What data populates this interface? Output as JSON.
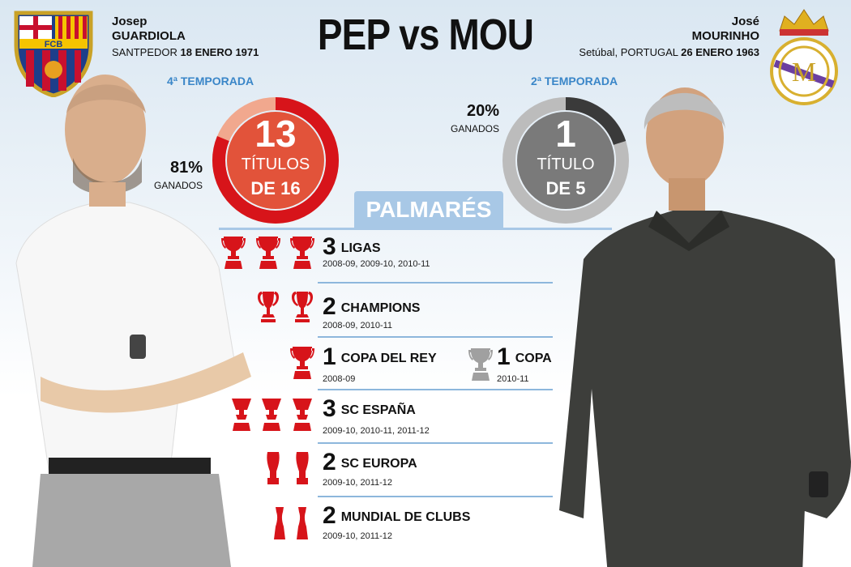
{
  "title": "PEP vs MOU",
  "pep": {
    "first_name": "Josep",
    "last_name": "GUARDIOLA",
    "birthplace": "SANTPEDOR",
    "birthdate": "18 ENERO 1971",
    "season": "4ª TEMPORADA",
    "win_pct": "81%",
    "win_label": "GANADOS",
    "titles_won": "13",
    "titles_label": "TÍTULOS",
    "titles_of": "DE 16",
    "fraction": 0.8125,
    "crest": "FCB"
  },
  "mou": {
    "first_name": "José",
    "last_name": "MOURINHO",
    "birthplace": "Setúbal, PORTUGAL",
    "birthdate": "26 ENERO 1963",
    "season": "2ª TEMPORADA",
    "win_pct": "20%",
    "win_label": "GANADOS",
    "titles_won": "1",
    "titles_label": "TÍTULO",
    "titles_of": "DE 5",
    "fraction": 0.2
  },
  "palmares": {
    "heading": "PALMARÉS",
    "pep_rows": [
      {
        "count": "3",
        "name": "LIGAS",
        "years": "2008-09, 2009-10, 2010-11"
      },
      {
        "count": "2",
        "name": "CHAMPIONS",
        "years": "2008-09, 2010-11"
      },
      {
        "count": "1",
        "name": "COPA DEL REY",
        "years": "2008-09"
      },
      {
        "count": "3",
        "name": "SC ESPAÑA",
        "years": "2009-10, 2010-11, 2011-12"
      },
      {
        "count": "2",
        "name": "SC EUROPA",
        "years": "2009-10, 2011-12"
      },
      {
        "count": "2",
        "name": "MUNDIAL DE CLUBS",
        "years": "2009-10, 2011-12"
      }
    ],
    "mou_rows": [
      {
        "count": "1",
        "name": "COPA",
        "years": "2010-11"
      }
    ]
  },
  "colors": {
    "pep_red": "#d7141a",
    "pep_inner": "#e2533a",
    "mou_dark": "#3a3a3a",
    "mou_inner": "#7a7a7a",
    "accent_blue": "#3a86c8",
    "tab_blue": "#a8c8e6"
  }
}
